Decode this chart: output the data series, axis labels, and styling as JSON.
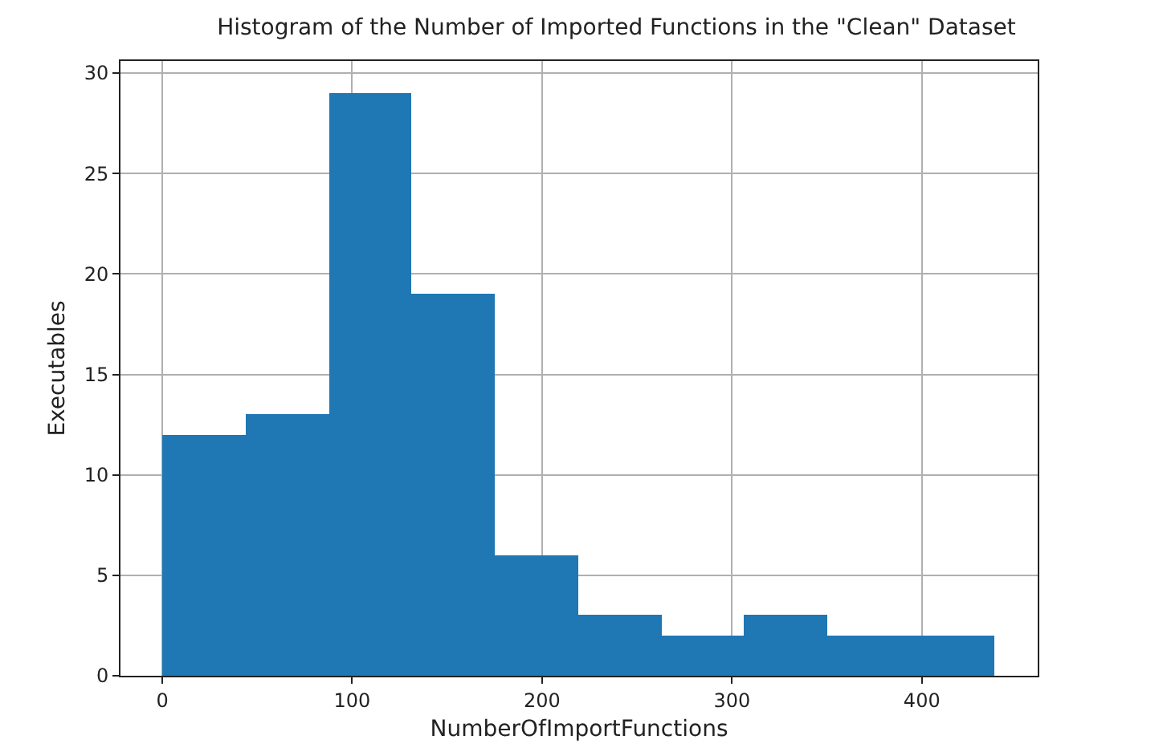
{
  "chart_data": {
    "type": "histogram",
    "title": "Histogram of the Number of Imported Functions in the \"Clean\" Dataset",
    "xlabel": "NumberOfImportFunctions",
    "ylabel": "Executables",
    "bins": [
      0,
      43.8,
      87.6,
      131.4,
      175.2,
      219,
      262.8,
      306.6,
      350.4,
      394.2,
      438
    ],
    "values": [
      12,
      13,
      29,
      19,
      6,
      3,
      2,
      3,
      2,
      2
    ],
    "color": "#1f77b4",
    "xlim": [
      -22,
      461
    ],
    "xticks": [
      0,
      100,
      200,
      300,
      400
    ],
    "ylim": [
      0,
      30.6
    ],
    "yticks": [
      0,
      5,
      10,
      15,
      20,
      25,
      30
    ],
    "grid": true
  }
}
